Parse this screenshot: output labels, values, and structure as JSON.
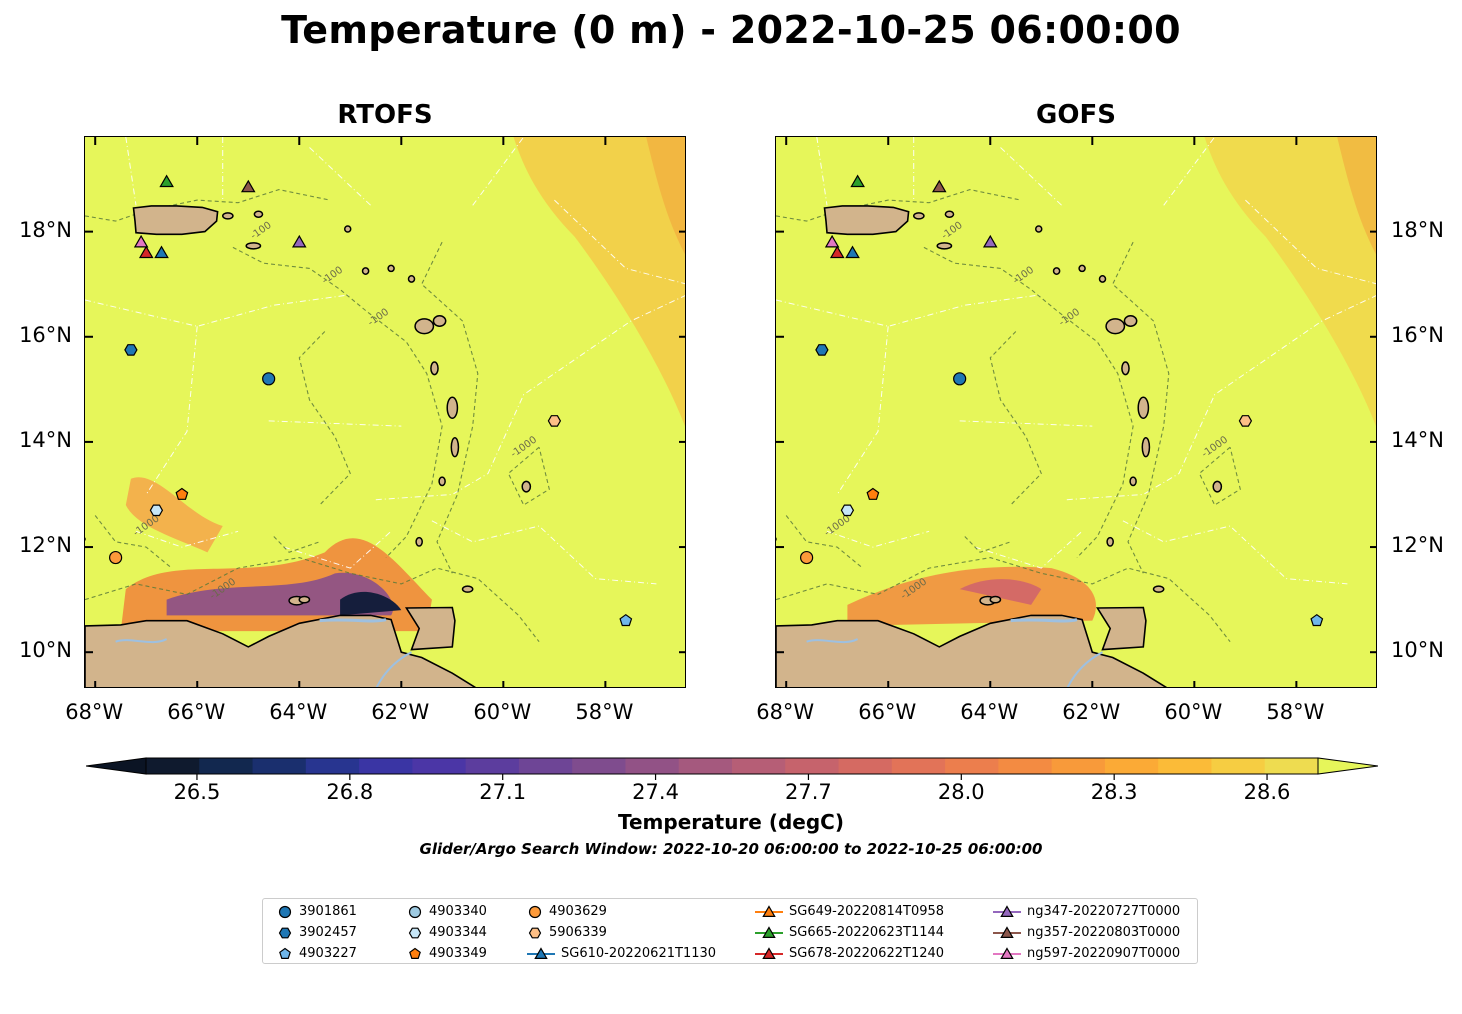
{
  "title": "Temperature (0 m) - 2022-10-25 06:00:00",
  "panels": [
    {
      "title": "RTOFS",
      "lat_label_side": "left"
    },
    {
      "title": "GOFS",
      "lat_label_side": "right"
    }
  ],
  "map": {
    "lon_range": [
      -68.2,
      -56.4
    ],
    "lat_range": [
      9.3,
      19.8
    ],
    "lat_ticks": [
      {
        "value": 10,
        "label": "10°N"
      },
      {
        "value": 12,
        "label": "12°N"
      },
      {
        "value": 14,
        "label": "14°N"
      },
      {
        "value": 16,
        "label": "16°N"
      },
      {
        "value": 18,
        "label": "18°N"
      }
    ],
    "lon_ticks": [
      {
        "value": -68,
        "label": "68°W"
      },
      {
        "value": -66,
        "label": "66°W"
      },
      {
        "value": -64,
        "label": "64°W"
      },
      {
        "value": -62,
        "label": "62°W"
      },
      {
        "value": -60,
        "label": "60°W"
      },
      {
        "value": -58,
        "label": "58°W"
      }
    ],
    "contour_labels": [
      "-1000",
      "-100"
    ],
    "colors": {
      "ocean": "#e6f65a",
      "land": "#d2b48c",
      "water_body": "#9ec0e0"
    }
  },
  "colorbar": {
    "label": "Temperature (degC)",
    "range": [
      26.4,
      28.7
    ],
    "ticks": [
      {
        "value": 26.5,
        "label": "26.5"
      },
      {
        "value": 26.8,
        "label": "26.8"
      },
      {
        "value": 27.1,
        "label": "27.1"
      },
      {
        "value": 27.4,
        "label": "27.4"
      },
      {
        "value": 27.7,
        "label": "27.7"
      },
      {
        "value": 28.0,
        "label": "28.0"
      },
      {
        "value": 28.3,
        "label": "28.3"
      },
      {
        "value": 28.6,
        "label": "28.6"
      }
    ],
    "colors": [
      "#0f1a2e",
      "#12284f",
      "#1a2f6e",
      "#283590",
      "#3a35a4",
      "#4b36a6",
      "#5c3d9e",
      "#6e4596",
      "#7f4c8e",
      "#925286",
      "#a5597e",
      "#b65e76",
      "#c6636c",
      "#d56a62",
      "#e27358",
      "#ec7e4d",
      "#f38b42",
      "#f89a3a",
      "#fbaa36",
      "#fbbb38",
      "#f6cd42",
      "#eedc50"
    ],
    "under_color": "#0b1424",
    "over_color": "#e6f65a"
  },
  "search_window": "Glider/Argo Search Window: 2022-10-20 06:00:00 to 2022-10-25 06:00:00",
  "legend": {
    "columns": [
      [
        {
          "label": "3901861",
          "marker": "circle",
          "color": "#1f77b4"
        },
        {
          "label": "3902457",
          "marker": "hexagon",
          "color": "#1f77b4"
        },
        {
          "label": "4903227",
          "marker": "pentagon",
          "color": "#6fb6ea"
        }
      ],
      [
        {
          "label": "4903340",
          "marker": "circle",
          "color": "#9ecae1"
        },
        {
          "label": "4903344",
          "marker": "hexagon",
          "color": "#c6e6f7"
        },
        {
          "label": "4903349",
          "marker": "pentagon",
          "color": "#ff7f0e"
        }
      ],
      [
        {
          "label": "4903629",
          "marker": "circle",
          "color": "#fd9a3a"
        },
        {
          "label": "5906339",
          "marker": "hexagon",
          "color": "#fdbf86"
        },
        {
          "label": "SG610-20220621T1130",
          "marker": "triangle-line",
          "color": "#1f77b4"
        }
      ],
      [
        {
          "label": "SG649-20220814T0958",
          "marker": "triangle-line",
          "color": "#ff7f0e"
        },
        {
          "label": "SG665-20220623T1144",
          "marker": "triangle-line",
          "color": "#2ca02c"
        },
        {
          "label": "SG678-20220622T1240",
          "marker": "triangle-line",
          "color": "#d62728"
        }
      ],
      [
        {
          "label": "ng347-20220727T0000",
          "marker": "triangle-line",
          "color": "#9467bd"
        },
        {
          "label": "ng357-20220803T0000",
          "marker": "triangle-line",
          "color": "#8c564b"
        },
        {
          "label": "ng597-20220907T0000",
          "marker": "triangle-line",
          "color": "#e377c2"
        }
      ]
    ]
  },
  "markers": [
    {
      "id": "3901861",
      "marker": "circle",
      "color": "#1f77b4",
      "lon": -64.6,
      "lat": 15.2
    },
    {
      "id": "3902457",
      "marker": "hexagon",
      "color": "#1f77b4",
      "lon": -67.3,
      "lat": 15.75
    },
    {
      "id": "4903227",
      "marker": "pentagon",
      "color": "#6fb6ea",
      "lon": -57.6,
      "lat": 10.6
    },
    {
      "id": "4903344",
      "marker": "hexagon",
      "color": "#c6e6f7",
      "lon": -66.8,
      "lat": 12.7
    },
    {
      "id": "4903349",
      "marker": "pentagon",
      "color": "#ff7f0e",
      "lon": -66.3,
      "lat": 13.0
    },
    {
      "id": "4903629",
      "marker": "circle",
      "color": "#fd9a3a",
      "lon": -67.6,
      "lat": 11.8
    },
    {
      "id": "5906339",
      "marker": "hexagon",
      "color": "#fdbf86",
      "lon": -59.0,
      "lat": 14.4
    },
    {
      "id": "SG610-20220621T1130",
      "marker": "triangle",
      "color": "#1f77b4",
      "lon": -66.7,
      "lat": 17.6
    },
    {
      "id": "SG665-20220623T1144",
      "marker": "triangle",
      "color": "#2ca02c",
      "lon": -66.6,
      "lat": 18.95
    },
    {
      "id": "SG678-20220622T1240",
      "marker": "triangle",
      "color": "#d62728",
      "lon": -67.0,
      "lat": 17.6
    },
    {
      "id": "ng347-20220727T0000",
      "marker": "triangle",
      "color": "#9467bd",
      "lon": -64.0,
      "lat": 17.8
    },
    {
      "id": "ng357-20220803T0000",
      "marker": "triangle",
      "color": "#8c564b",
      "lon": -65.0,
      "lat": 18.85
    },
    {
      "id": "ng597-20220907T0000",
      "marker": "triangle",
      "color": "#e377c2",
      "lon": -67.1,
      "lat": 17.8
    }
  ]
}
